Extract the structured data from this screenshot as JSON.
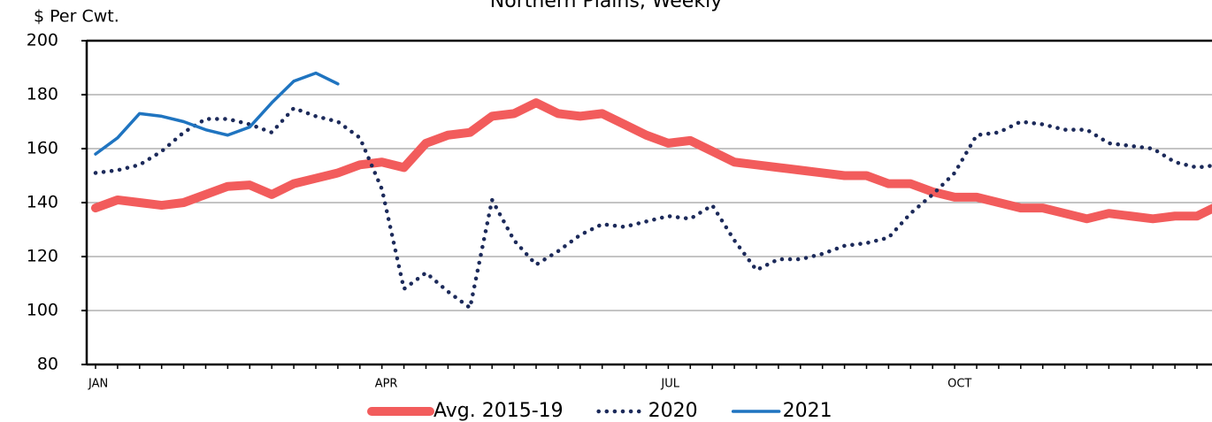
{
  "chart_data": {
    "type": "line",
    "title": "Northern Plains, Weekly",
    "y_label": "$ Per Cwt.",
    "categories": [
      "JAN",
      null,
      null,
      null,
      null,
      null,
      null,
      null,
      null,
      null,
      null,
      null,
      null,
      "APR",
      null,
      null,
      null,
      null,
      null,
      null,
      null,
      null,
      null,
      null,
      null,
      null,
      "JUL",
      null,
      null,
      null,
      null,
      null,
      null,
      null,
      null,
      null,
      null,
      null,
      null,
      "OCT",
      null,
      null,
      null,
      null,
      null,
      null,
      null,
      null,
      null,
      null,
      null,
      null
    ],
    "series": [
      {
        "name": "Avg. 2015-19",
        "color": "#f25c5c",
        "style": "solid",
        "values": [
          138,
          141,
          140,
          139,
          140,
          143,
          146,
          146.5,
          143,
          147,
          149,
          151,
          154,
          155,
          153,
          162,
          165,
          166,
          172,
          173,
          177,
          173,
          172,
          173,
          169,
          165,
          162,
          163,
          159,
          155,
          154,
          153,
          152,
          151,
          150,
          150,
          147,
          147,
          144,
          142,
          142,
          140,
          138,
          138,
          136,
          134,
          136,
          135,
          134,
          135,
          135,
          139
        ]
      },
      {
        "name": "2020",
        "color": "#1c2a5a",
        "style": "dotted",
        "values": [
          151,
          152,
          154,
          159,
          166,
          171,
          171,
          169,
          166,
          175,
          172,
          170,
          164,
          145,
          108,
          114,
          107,
          101,
          141,
          126,
          117,
          122,
          128,
          132,
          131,
          133,
          135,
          134,
          139,
          126,
          115,
          119,
          119,
          121,
          124,
          125,
          127,
          136,
          143,
          151,
          165,
          166,
          170,
          169,
          167,
          167,
          162,
          161,
          160,
          155,
          153,
          154
        ]
      },
      {
        "name": "2021",
        "color": "#1f74c0",
        "style": "solid",
        "values": [
          158,
          164,
          173,
          172,
          170,
          167,
          165,
          168,
          177,
          185,
          188,
          184,
          null,
          null,
          null,
          null,
          null,
          null,
          null,
          null,
          null,
          null,
          null,
          null,
          null,
          null,
          null,
          null,
          null,
          null,
          null,
          null,
          null,
          null,
          null,
          null,
          null,
          null,
          null,
          null,
          null,
          null,
          null,
          null,
          null,
          null,
          null,
          null,
          null,
          null,
          null,
          null
        ]
      }
    ],
    "ylim": [
      80,
      200
    ],
    "yticks": [
      80,
      100,
      120,
      140,
      160,
      180,
      200
    ],
    "grid": true
  }
}
